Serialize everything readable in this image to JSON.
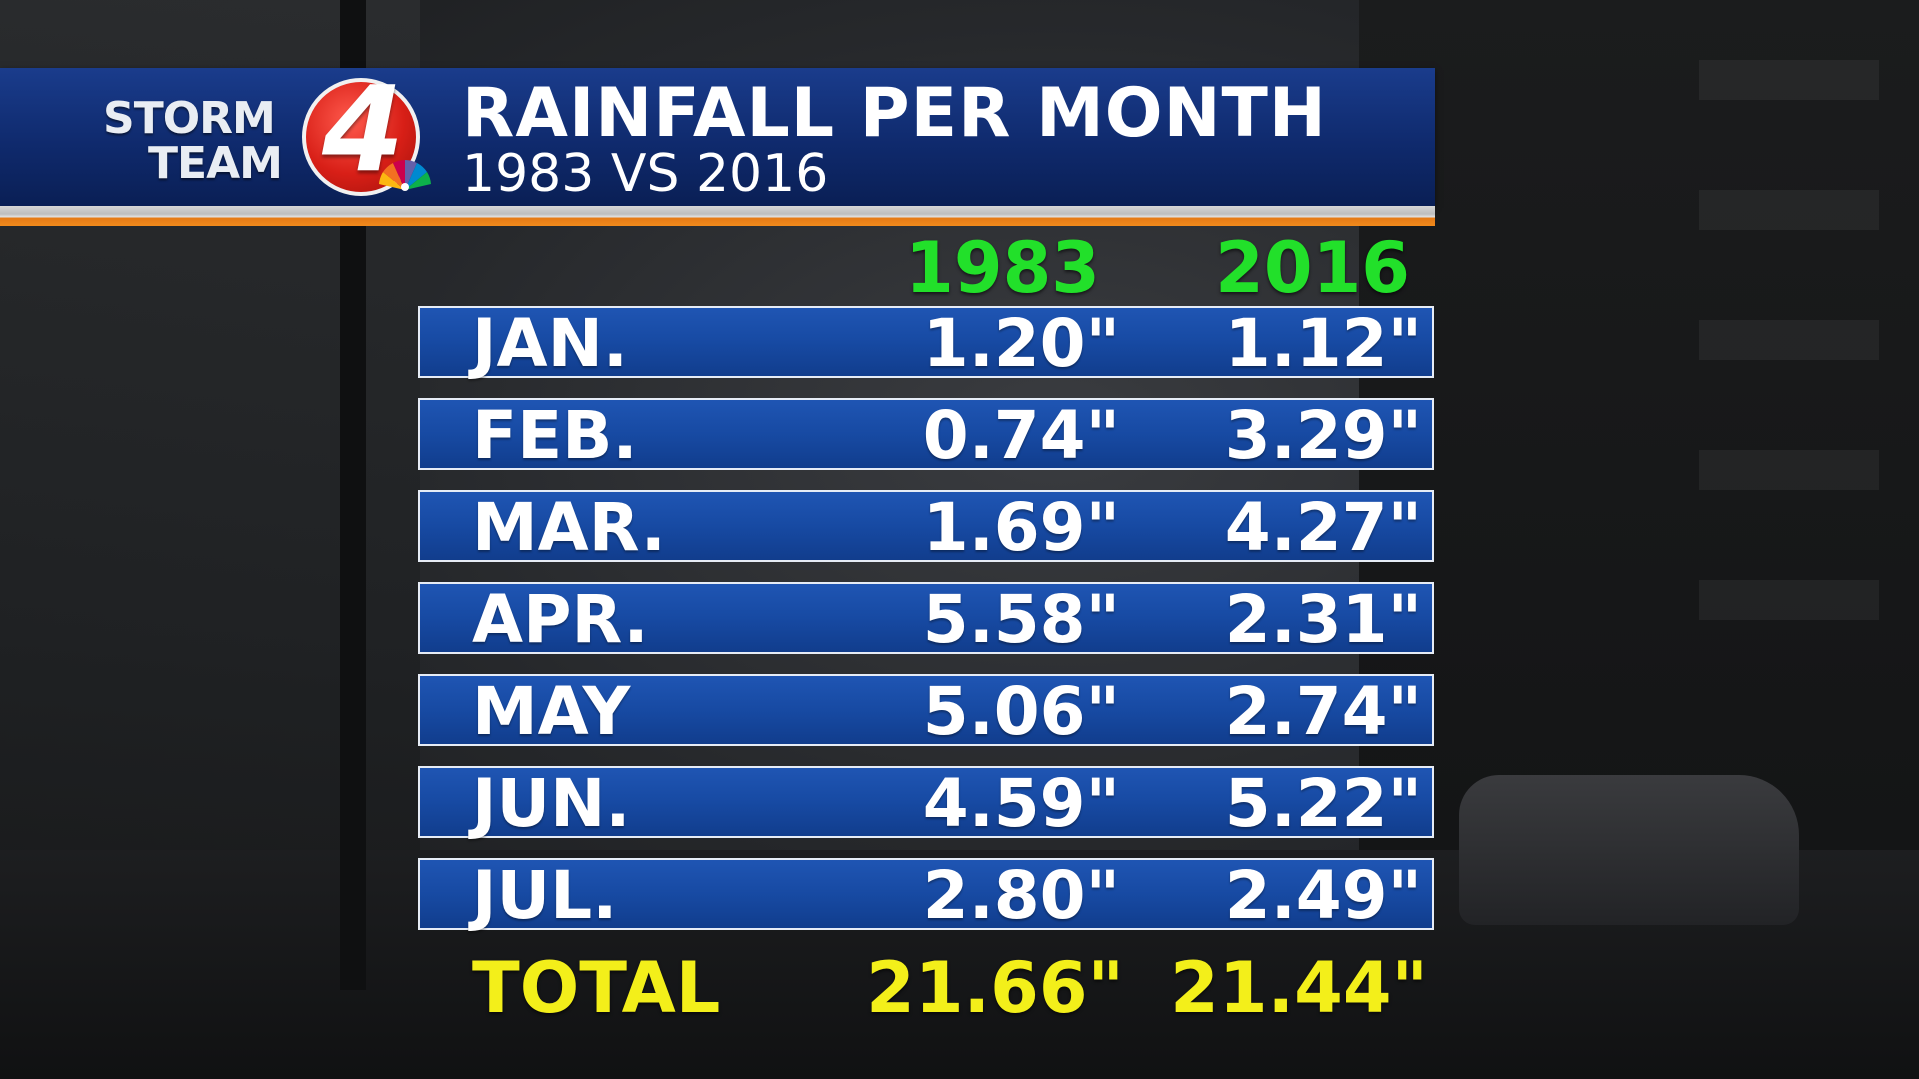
{
  "branding": {
    "logo_line1": "STORM",
    "logo_line2": "TEAM",
    "logo_number": "4",
    "peacock_icon": "nbc-peacock-icon"
  },
  "colors": {
    "header_blue": "#0f2a6d",
    "row_blue": "#174aa3",
    "year_green": "#22e02a",
    "total_yellow": "#f3ef1a",
    "accent_orange": "#f08a1c"
  },
  "chart_data": {
    "type": "table",
    "title": "RAINFALL PER MONTH",
    "subtitle": "1983 VS 2016",
    "columns": [
      "1983",
      "2016"
    ],
    "rows": [
      {
        "label": "JAN.",
        "values": [
          "1.20\"",
          "1.12\""
        ]
      },
      {
        "label": "FEB.",
        "values": [
          "0.74\"",
          "3.29\""
        ]
      },
      {
        "label": "MAR.",
        "values": [
          "1.69\"",
          "4.27\""
        ]
      },
      {
        "label": "APR.",
        "values": [
          "5.58\"",
          "2.31\""
        ]
      },
      {
        "label": "MAY",
        "values": [
          "5.06\"",
          "2.74\""
        ]
      },
      {
        "label": "JUN.",
        "values": [
          "4.59\"",
          "5.22\""
        ]
      },
      {
        "label": "JUL.",
        "values": [
          "2.80\"",
          "2.49\""
        ]
      }
    ],
    "total": {
      "label": "TOTAL",
      "values": [
        "21.66\"",
        "21.44\""
      ]
    }
  }
}
